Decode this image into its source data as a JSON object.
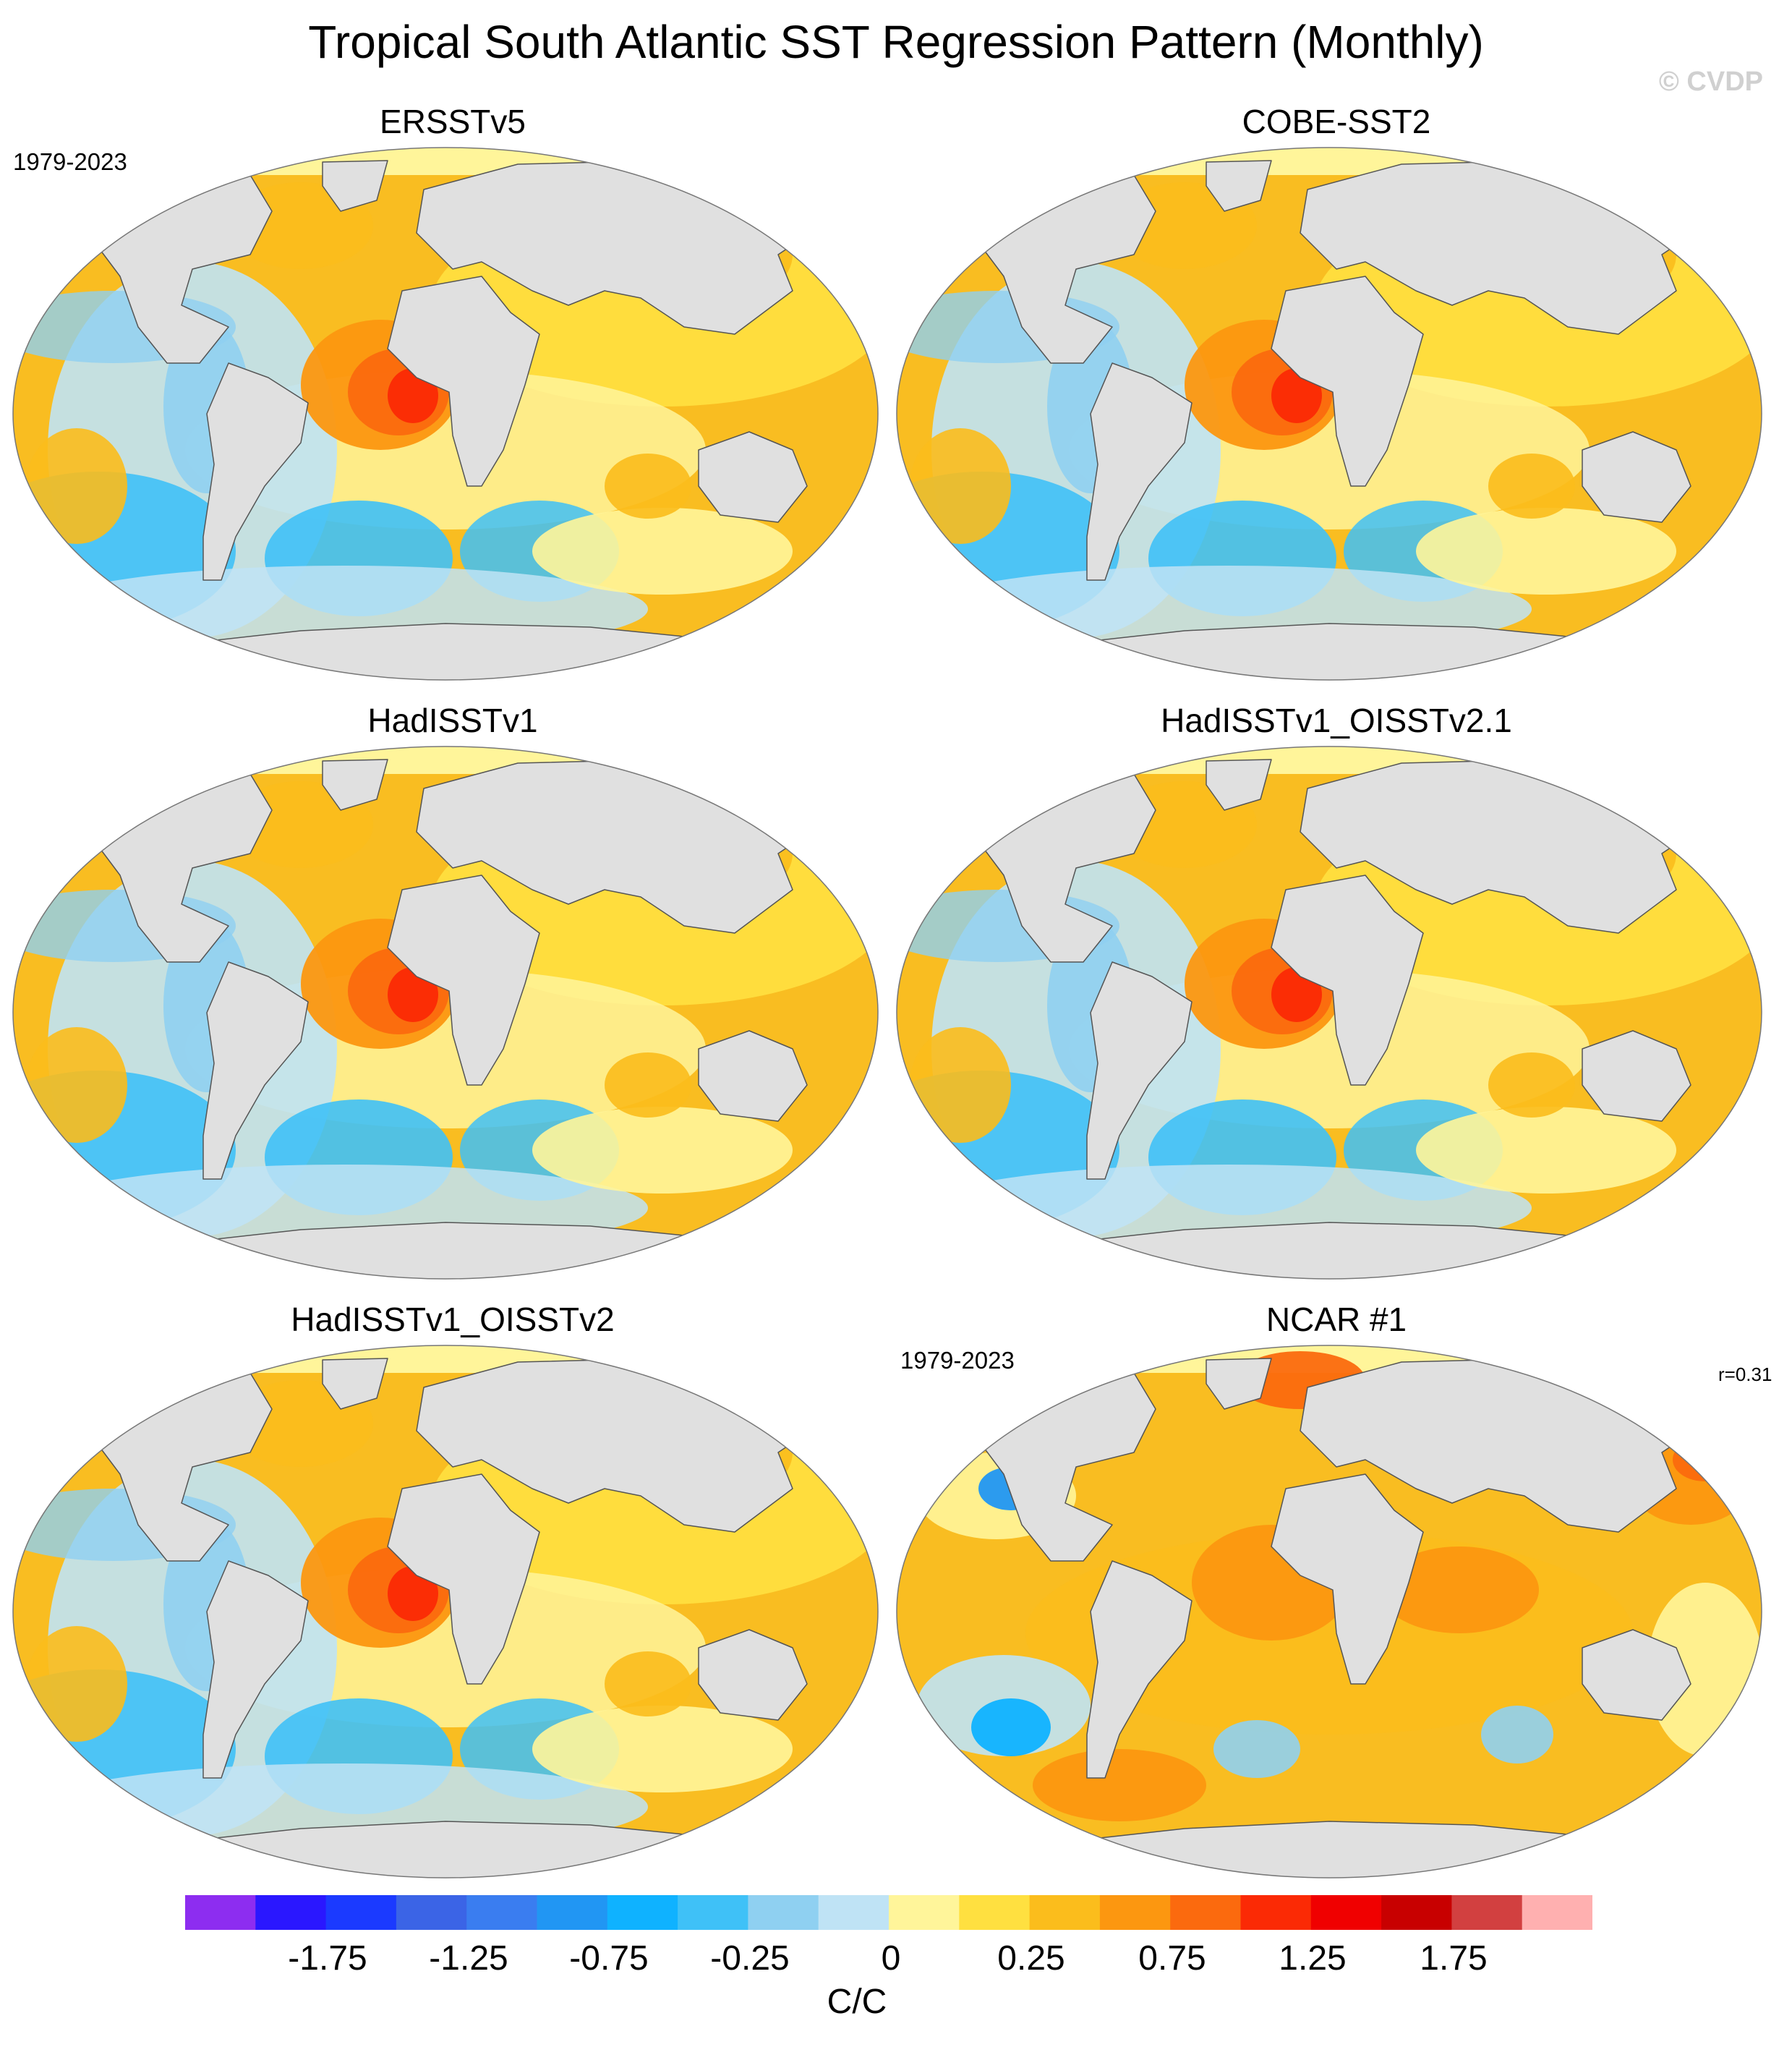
{
  "title": "Tropical South Atlantic SST Regression Pattern (Monthly)",
  "watermark": "© CVDP",
  "colors": {
    "land": "#e0e0e0",
    "ocean_base": "#f9bd21",
    "coastline": "#555555"
  },
  "panels": [
    {
      "title": "ERSSTv5",
      "period": "1979-2023",
      "r": "",
      "pattern": "obs"
    },
    {
      "title": "COBE-SST2",
      "period": "",
      "r": "",
      "pattern": "obs"
    },
    {
      "title": "HadISSTv1",
      "period": "",
      "r": "",
      "pattern": "obs"
    },
    {
      "title": "HadISSTv1_OISSTv2.1",
      "period": "",
      "r": "",
      "pattern": "obs"
    },
    {
      "title": "HadISSTv1_OISSTv2",
      "period": "",
      "r": "",
      "pattern": "obs"
    },
    {
      "title": "NCAR #1",
      "period": "1979-2023",
      "r": "r=0.31",
      "pattern": "model"
    }
  ],
  "colorbar": {
    "units": "C/C",
    "levels": [
      -2.0,
      -1.75,
      -1.5,
      -1.25,
      -1.0,
      -0.75,
      -0.5,
      -0.25,
      0,
      0.25,
      0.5,
      0.75,
      1.0,
      1.25,
      1.5,
      1.75,
      2.0
    ],
    "tick_labels": [
      "-1.75",
      "-1.25",
      "-0.75",
      "-0.25",
      "0",
      "0.25",
      "0.75",
      "1.25",
      "1.75"
    ],
    "colors": [
      "#8d2df0",
      "#2a17ff",
      "#1b3aff",
      "#3b64e6",
      "#3a7df0",
      "#2196f3",
      "#0fb2ff",
      "#3fc1f7",
      "#8fd0f1",
      "#bfe3f5",
      "#fff59a",
      "#ffe040",
      "#fbbd1c",
      "#fc9710",
      "#fb6a0e",
      "#fb2a05",
      "#f00000",
      "#c80000",
      "#d24040",
      "#ffb0b0"
    ]
  }
}
